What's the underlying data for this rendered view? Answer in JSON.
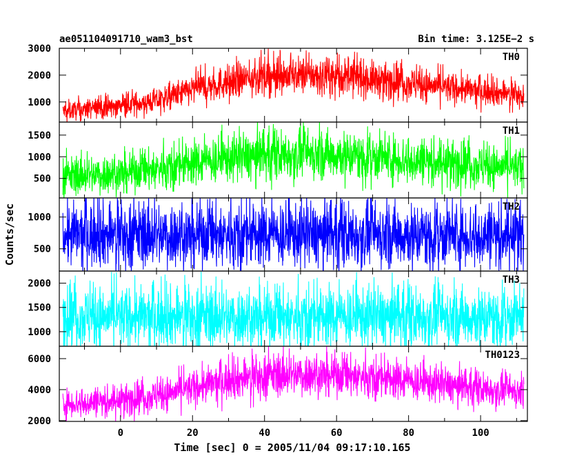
{
  "header": {
    "left_title": "ae051104091710_wam3_bst",
    "right_title": "Bin time: 3.125E−2 s"
  },
  "axes": {
    "xlabel": "Time [sec] 0 = 2005/11/04 09:17:10.165",
    "ylabel": "Counts/sec"
  },
  "chart_data": {
    "type": "line",
    "title": "ae051104091710_wam3_bst",
    "subtitle": "Bin time: 3.125E−2 s",
    "xlabel": "Time [sec] 0 = 2005/11/04 09:17:10.165",
    "ylabel": "Counts/sec",
    "xlim": [
      -17,
      113
    ],
    "x_ticks": [
      0,
      20,
      40,
      60,
      80,
      100
    ],
    "x_range_data": [
      -16,
      112
    ],
    "bin_time_s": 0.03125,
    "panels": [
      {
        "name": "TH0",
        "color": "#ff0000",
        "ylim": [
          250,
          3000
        ],
        "yticks": [
          1000,
          2000,
          3000
        ],
        "envelope": {
          "x": [
            -16,
            0,
            10,
            20,
            30,
            40,
            50,
            60,
            70,
            80,
            90,
            100,
            112
          ],
          "mean": [
            650,
            850,
            1050,
            1450,
            1750,
            1950,
            2000,
            1950,
            1850,
            1700,
            1550,
            1400,
            1250
          ],
          "spread": [
            300,
            350,
            400,
            500,
            550,
            600,
            600,
            600,
            580,
            550,
            500,
            450,
            400
          ]
        }
      },
      {
        "name": "TH1",
        "color": "#00ff00",
        "ylim": [
          50,
          1800
        ],
        "yticks": [
          500,
          1000,
          1500
        ],
        "envelope": {
          "x": [
            -16,
            0,
            10,
            20,
            30,
            40,
            50,
            60,
            70,
            80,
            90,
            100,
            112
          ],
          "mean": [
            550,
            620,
            720,
            850,
            960,
            1030,
            1060,
            1050,
            1000,
            930,
            860,
            790,
            740
          ],
          "spread": [
            380,
            400,
            420,
            450,
            480,
            500,
            500,
            500,
            490,
            470,
            450,
            430,
            420
          ]
        }
      },
      {
        "name": "TH2",
        "color": "#0000ff",
        "ylim": [
          150,
          1300
        ],
        "yticks": [
          500,
          1000
        ],
        "envelope": {
          "x": [
            -16,
            112
          ],
          "mean": [
            720,
            720
          ],
          "spread": [
            450,
            450
          ]
        }
      },
      {
        "name": "TH3",
        "color": "#00ffff",
        "ylim": [
          700,
          2250
        ],
        "yticks": [
          1000,
          1500,
          2000
        ],
        "envelope": {
          "x": [
            -16,
            112
          ],
          "mean": [
            1300,
            1300
          ],
          "spread": [
            550,
            550
          ]
        }
      },
      {
        "name": "TH0123",
        "color": "#ff00ff",
        "ylim": [
          1950,
          6800
        ],
        "yticks": [
          2000,
          4000,
          6000
        ],
        "envelope": {
          "x": [
            -16,
            0,
            10,
            20,
            30,
            40,
            50,
            60,
            70,
            80,
            90,
            100,
            112
          ],
          "mean": [
            3100,
            3300,
            3600,
            4100,
            4600,
            4900,
            5000,
            4950,
            4800,
            4550,
            4300,
            4050,
            3850
          ],
          "spread": [
            800,
            850,
            900,
            1000,
            1100,
            1200,
            1200,
            1200,
            1150,
            1100,
            1000,
            950,
            900
          ]
        }
      }
    ]
  }
}
